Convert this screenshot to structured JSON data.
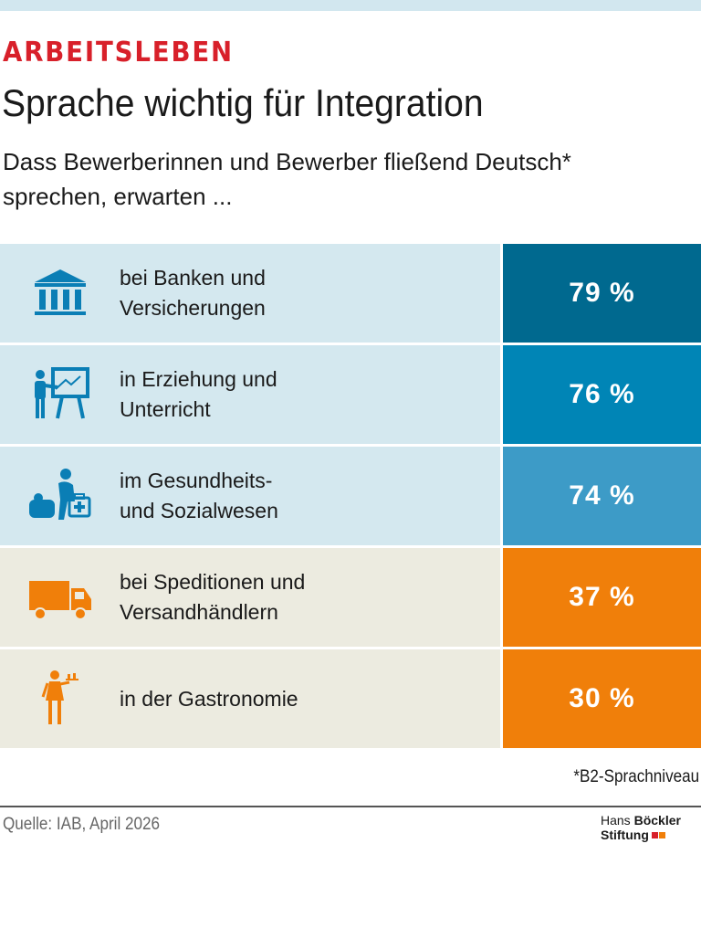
{
  "header": {
    "kicker": "ARBEITSLEBEN",
    "title": "Sprache wichtig für Integration",
    "subtitle": "Dass Bewerberinnen und Bewerber fließend Deutsch* sprechen, erwarten ..."
  },
  "chart_data": {
    "type": "table",
    "categories": [
      "bei Banken und Versicherungen",
      "in Erziehung und Unterricht",
      "im Gesundheits- und Sozialwesen",
      "bei Speditionen und Versandhändlern",
      "in der Gastronomie"
    ],
    "values": [
      79,
      76,
      74,
      37,
      30
    ],
    "unit": "%",
    "rows": [
      {
        "line1": "bei Banken und",
        "line2": "Versicherungen",
        "value": 79,
        "display": "79 %",
        "icon": "bank-icon",
        "row_bg": "#d4e8ef",
        "value_bg": "#00698f",
        "icon_color": "#0a7eb5"
      },
      {
        "line1": "in Erziehung und",
        "line2": "Unterricht",
        "value": 76,
        "display": "76 %",
        "icon": "teacher-icon",
        "row_bg": "#d4e8ef",
        "value_bg": "#0085b6",
        "icon_color": "#0a7eb5"
      },
      {
        "line1": "im Gesundheits-",
        "line2": "und Sozialwesen",
        "value": 74,
        "display": "74 %",
        "icon": "caregiver-icon",
        "row_bg": "#d4e8ef",
        "value_bg": "#3d9bc7",
        "icon_color": "#0a7eb5"
      },
      {
        "line1": "bei Speditionen und",
        "line2": "Versandhändlern",
        "value": 37,
        "display": "37 %",
        "icon": "truck-icon",
        "row_bg": "#ecebe0",
        "value_bg": "#f07f0a",
        "icon_color": "#f07f0a"
      },
      {
        "line1": "in der Gastronomie",
        "line2": "",
        "value": 30,
        "display": "30 %",
        "icon": "waitress-icon",
        "row_bg": "#ecebe0",
        "value_bg": "#f07f0a",
        "icon_color": "#f07f0a"
      }
    ]
  },
  "footnote": "*B2-Sprachniveau",
  "source": "Quelle: IAB, April 2026",
  "logo": {
    "line1_regular": "Hans",
    "line1_bold": "Böckler",
    "line2": "Stiftung",
    "colors": [
      "#d8202a",
      "#f07f0a"
    ]
  }
}
